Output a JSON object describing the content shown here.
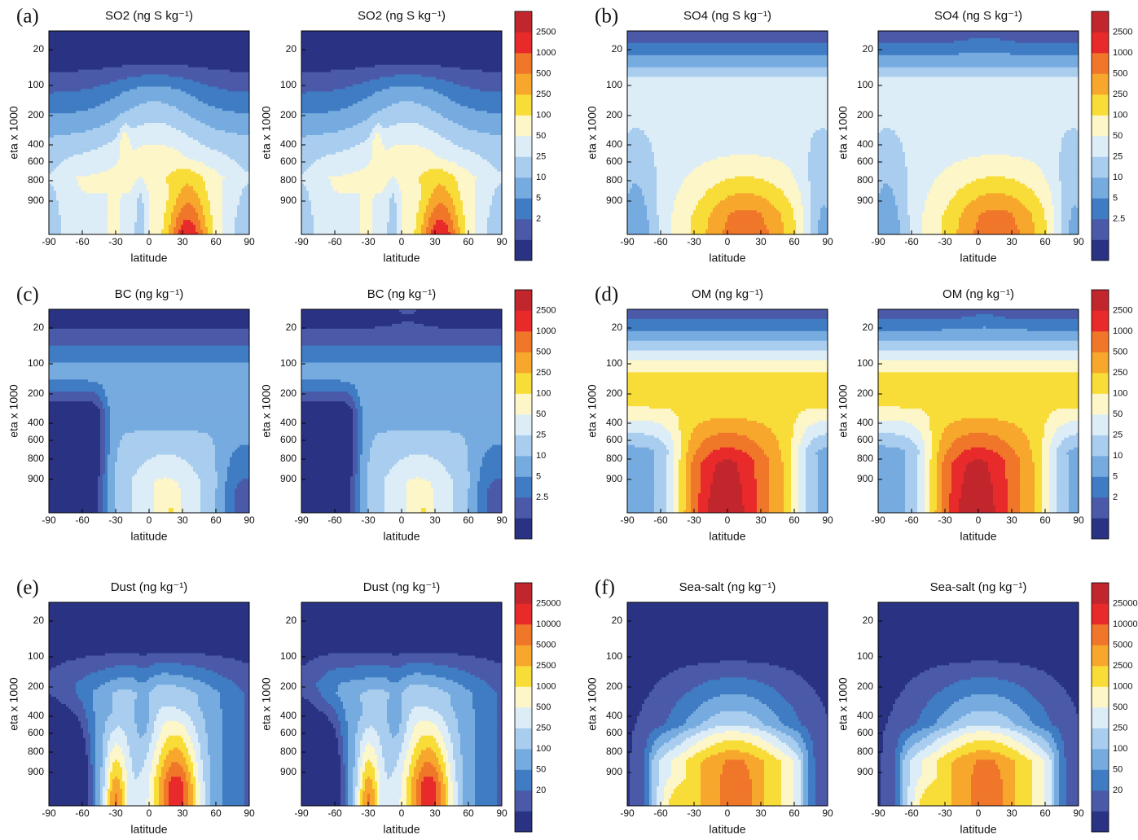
{
  "chart_data": [
    {
      "type": "contour",
      "label": "(a)",
      "levels": [
        2500,
        1000,
        500,
        250,
        100,
        50,
        25,
        10,
        5,
        2
      ],
      "colors": [
        "#2a3383",
        "#4a5aa9",
        "#3f7cc3",
        "#76abe0",
        "#a9cdee",
        "#dcedf8",
        "#fcf6c8",
        "#f8dc38",
        "#f6a72c",
        "#f0772a",
        "#e92a2a",
        "#c2262d"
      ],
      "plots": [
        {
          "title": "SO2 (ng S kg⁻¹)",
          "xlabel": "latitude",
          "ylabel": "eta x 1000",
          "xlim": [
            -90,
            90
          ],
          "xticks": [
            -90,
            -60,
            -30,
            0,
            30,
            60,
            90
          ],
          "yticks": [
            20,
            100,
            200,
            400,
            600,
            800,
            900
          ]
        },
        {
          "title": "SO2 (ng S kg⁻¹)",
          "xlabel": "latitude",
          "ylabel": "eta x 1000",
          "xlim": [
            -90,
            90
          ],
          "xticks": [
            -90,
            -60,
            -30,
            0,
            30,
            60,
            90
          ],
          "yticks": [
            20,
            100,
            200,
            400,
            600,
            800,
            900
          ]
        }
      ]
    },
    {
      "type": "contour",
      "label": "(b)",
      "levels": [
        2500,
        1000,
        500,
        250,
        100,
        50,
        25,
        10,
        5,
        2.5
      ],
      "colors": [
        "#2a3383",
        "#4a5aa9",
        "#3f7cc3",
        "#76abe0",
        "#a9cdee",
        "#dcedf8",
        "#fcf6c8",
        "#f8dc38",
        "#f6a72c",
        "#f0772a",
        "#e92a2a",
        "#c2262d"
      ],
      "plots": [
        {
          "title": "SO4 (ng S kg⁻¹)",
          "xlabel": "latitude",
          "ylabel": "eta x 1000",
          "xlim": [
            -90,
            90
          ],
          "xticks": [
            -90,
            -60,
            -30,
            0,
            30,
            60,
            90
          ],
          "yticks": [
            20,
            100,
            200,
            400,
            600,
            800,
            900
          ]
        },
        {
          "title": "SO4 (ng S kg⁻¹)",
          "xlabel": "latitude",
          "ylabel": "eta x 1000",
          "xlim": [
            -90,
            90
          ],
          "xticks": [
            -90,
            -60,
            -30,
            0,
            30,
            60,
            90
          ],
          "yticks": [
            20,
            100,
            200,
            400,
            600,
            800,
            900
          ]
        }
      ]
    },
    {
      "type": "contour",
      "label": "(c)",
      "levels": [
        2500,
        1000,
        500,
        250,
        100,
        50,
        25,
        10,
        5,
        2.5
      ],
      "colors": [
        "#2a3383",
        "#4a5aa9",
        "#3f7cc3",
        "#76abe0",
        "#a9cdee",
        "#dcedf8",
        "#fcf6c8",
        "#f8dc38",
        "#f6a72c",
        "#f0772a",
        "#e92a2a",
        "#c2262d"
      ],
      "plots": [
        {
          "title": "BC (ng kg⁻¹)",
          "xlabel": "latitude",
          "ylabel": "eta x 1000",
          "xlim": [
            -90,
            90
          ],
          "xticks": [
            -90,
            -60,
            -30,
            0,
            30,
            60,
            90
          ],
          "yticks": [
            20,
            100,
            200,
            400,
            600,
            800,
            900
          ]
        },
        {
          "title": "BC (ng kg⁻¹)",
          "xlabel": "latitude",
          "ylabel": "eta x 1000",
          "xlim": [
            -90,
            90
          ],
          "xticks": [
            -90,
            -60,
            -30,
            0,
            30,
            60,
            90
          ],
          "yticks": [
            20,
            100,
            200,
            400,
            600,
            800,
            900
          ]
        }
      ]
    },
    {
      "type": "contour",
      "label": "(d)",
      "levels": [
        2500,
        1000,
        500,
        250,
        100,
        50,
        25,
        10,
        5,
        2
      ],
      "colors": [
        "#2a3383",
        "#4a5aa9",
        "#3f7cc3",
        "#76abe0",
        "#a9cdee",
        "#dcedf8",
        "#fcf6c8",
        "#f8dc38",
        "#f6a72c",
        "#f0772a",
        "#e92a2a",
        "#c2262d"
      ],
      "plots": [
        {
          "title": "OM (ng kg⁻¹)",
          "xlabel": "latitude",
          "ylabel": "eta x 1000",
          "xlim": [
            -90,
            90
          ],
          "xticks": [
            -90,
            -60,
            -30,
            0,
            30,
            60,
            90
          ],
          "yticks": [
            20,
            100,
            200,
            400,
            600,
            800,
            900
          ]
        },
        {
          "title": "OM (ng kg⁻¹)",
          "xlabel": "latitude",
          "ylabel": "eta x 1000",
          "xlim": [
            -90,
            90
          ],
          "xticks": [
            -90,
            -60,
            -30,
            0,
            30,
            60,
            90
          ],
          "yticks": [
            20,
            100,
            200,
            400,
            600,
            800,
            900
          ]
        }
      ]
    },
    {
      "type": "contour",
      "label": "(e)",
      "levels": [
        25000,
        10000,
        5000,
        2500,
        1000,
        500,
        250,
        100,
        50,
        20
      ],
      "colors": [
        "#2a3383",
        "#4a5aa9",
        "#3f7cc3",
        "#76abe0",
        "#a9cdee",
        "#dcedf8",
        "#fcf6c8",
        "#f8dc38",
        "#f6a72c",
        "#f0772a",
        "#e92a2a",
        "#c2262d"
      ],
      "plots": [
        {
          "title": "Dust (ng kg⁻¹)",
          "xlabel": "latitude",
          "ylabel": "eta x 1000",
          "xlim": [
            -90,
            90
          ],
          "xticks": [
            -90,
            -60,
            -30,
            0,
            30,
            60,
            90
          ],
          "yticks": [
            20,
            100,
            200,
            400,
            600,
            800,
            900
          ]
        },
        {
          "title": "Dust (ng kg⁻¹)",
          "xlabel": "latitude",
          "ylabel": "eta x 1000",
          "xlim": [
            -90,
            90
          ],
          "xticks": [
            -90,
            -60,
            -30,
            0,
            30,
            60,
            90
          ],
          "yticks": [
            20,
            100,
            200,
            400,
            600,
            800,
            900
          ]
        }
      ]
    },
    {
      "type": "contour",
      "label": "(f)",
      "levels": [
        25000,
        10000,
        5000,
        2500,
        1000,
        500,
        250,
        100,
        50,
        20
      ],
      "colors": [
        "#2a3383",
        "#4a5aa9",
        "#3f7cc3",
        "#76abe0",
        "#a9cdee",
        "#dcedf8",
        "#fcf6c8",
        "#f8dc38",
        "#f6a72c",
        "#f0772a",
        "#e92a2a",
        "#c2262d"
      ],
      "plots": [
        {
          "title": "Sea-salt (ng kg⁻¹)",
          "xlabel": "latitude",
          "ylabel": "eta x 1000",
          "xlim": [
            -90,
            90
          ],
          "xticks": [
            -90,
            -60,
            -30,
            0,
            30,
            60,
            90
          ],
          "yticks": [
            20,
            100,
            200,
            400,
            600,
            800,
            900
          ]
        },
        {
          "title": "Sea-salt (ng kg⁻¹)",
          "xlabel": "latitude",
          "ylabel": "eta x 1000",
          "xlim": [
            -90,
            90
          ],
          "xticks": [
            -90,
            -60,
            -30,
            0,
            30,
            60,
            90
          ],
          "yticks": [
            20,
            100,
            200,
            400,
            600,
            800,
            900
          ]
        }
      ]
    }
  ]
}
